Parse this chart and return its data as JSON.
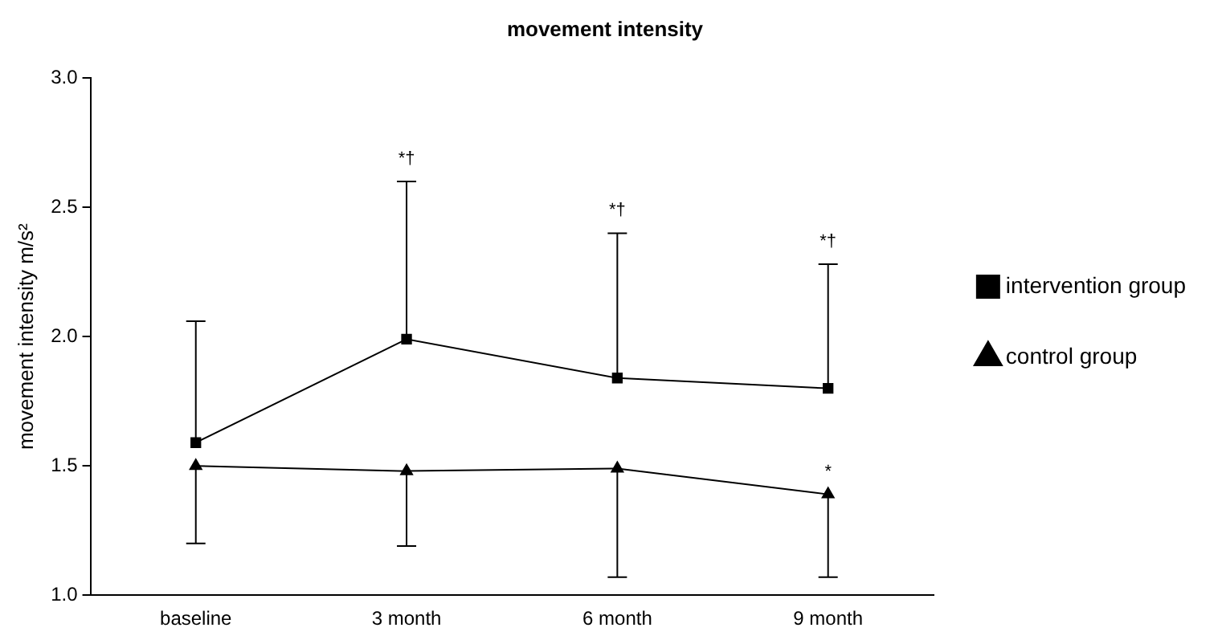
{
  "chart_data": {
    "type": "line",
    "title": "movement intensity",
    "ylabel": "movement intensity m/s²",
    "categories": [
      "baseline",
      "3 month",
      "6 month",
      "9 month"
    ],
    "series": [
      {
        "name": "intervention group",
        "color": "#000000",
        "marker": "square",
        "values": [
          1.59,
          1.99,
          1.84,
          1.8
        ],
        "errors": [
          [
            1.59,
            2.06
          ],
          [
            1.99,
            2.6
          ],
          [
            1.84,
            2.4
          ],
          [
            1.8,
            2.28
          ]
        ]
      },
      {
        "name": "control group",
        "color": "#000000",
        "marker": "triangle",
        "values": [
          1.5,
          1.48,
          1.49,
          1.39
        ],
        "errors": [
          [
            1.2,
            1.5
          ],
          [
            1.19,
            1.48
          ],
          [
            1.07,
            1.49
          ],
          [
            1.07,
            1.39
          ]
        ]
      }
    ],
    "ylim": [
      1.0,
      3.0
    ],
    "yticks": [
      {
        "value": 1.0,
        "label": "1.0"
      },
      {
        "value": 1.5,
        "label": "1.5"
      },
      {
        "value": 2.0,
        "label": "2.0"
      },
      {
        "value": 2.5,
        "label": "2.5"
      },
      {
        "value": 3.0,
        "label": "3.0"
      }
    ],
    "annotations": [
      {
        "text": "*†",
        "x": "3 month",
        "y": 2.6
      },
      {
        "text": "*†",
        "x": "6 month",
        "y": 2.4
      },
      {
        "text": "*†",
        "x": "9 month",
        "y": 2.28
      },
      {
        "text": "*",
        "x": "9 month",
        "y": 1.39
      }
    ],
    "grid": false,
    "legend": "right",
    "line_style": "solid"
  }
}
